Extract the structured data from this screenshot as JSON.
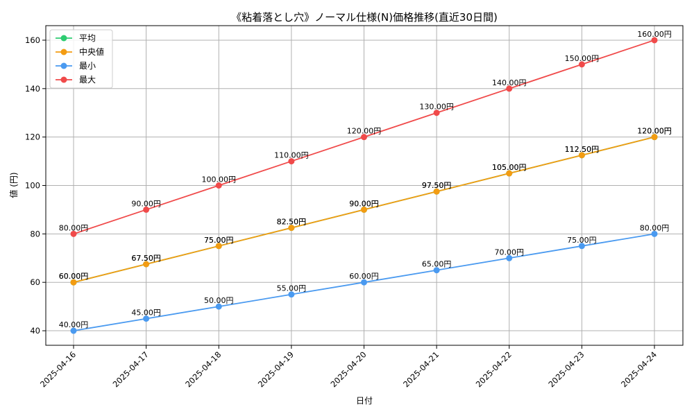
{
  "chart_data": {
    "type": "line",
    "title": "《粘着落とし穴》ノーマル仕様(N)価格推移(直近30日間)",
    "xlabel": "日付",
    "ylabel": "値 (円)",
    "categories": [
      "2025-04-16",
      "2025-04-17",
      "2025-04-18",
      "2025-04-19",
      "2025-04-20",
      "2025-04-21",
      "2025-04-22",
      "2025-04-23",
      "2025-04-24"
    ],
    "ylim": [
      34,
      166
    ],
    "yticks": [
      40,
      60,
      80,
      100,
      120,
      140,
      160
    ],
    "grid": true,
    "legend_position": "top-left",
    "value_suffix": "円",
    "series": [
      {
        "name": "平均",
        "color": "#2ecc71",
        "values": [
          60,
          67.5,
          75,
          82.5,
          90,
          97.5,
          105,
          112.5,
          120
        ]
      },
      {
        "name": "中央値",
        "color": "#f39c12",
        "values": [
          60,
          67.5,
          75,
          82.5,
          90,
          97.5,
          105,
          112.5,
          120
        ]
      },
      {
        "name": "最小",
        "color": "#4a9af0",
        "values": [
          40,
          45,
          50,
          55,
          60,
          65,
          70,
          75,
          80
        ]
      },
      {
        "name": "最大",
        "color": "#f04a4a",
        "values": [
          80,
          90,
          100,
          110,
          120,
          130,
          140,
          150,
          160
        ]
      }
    ]
  }
}
